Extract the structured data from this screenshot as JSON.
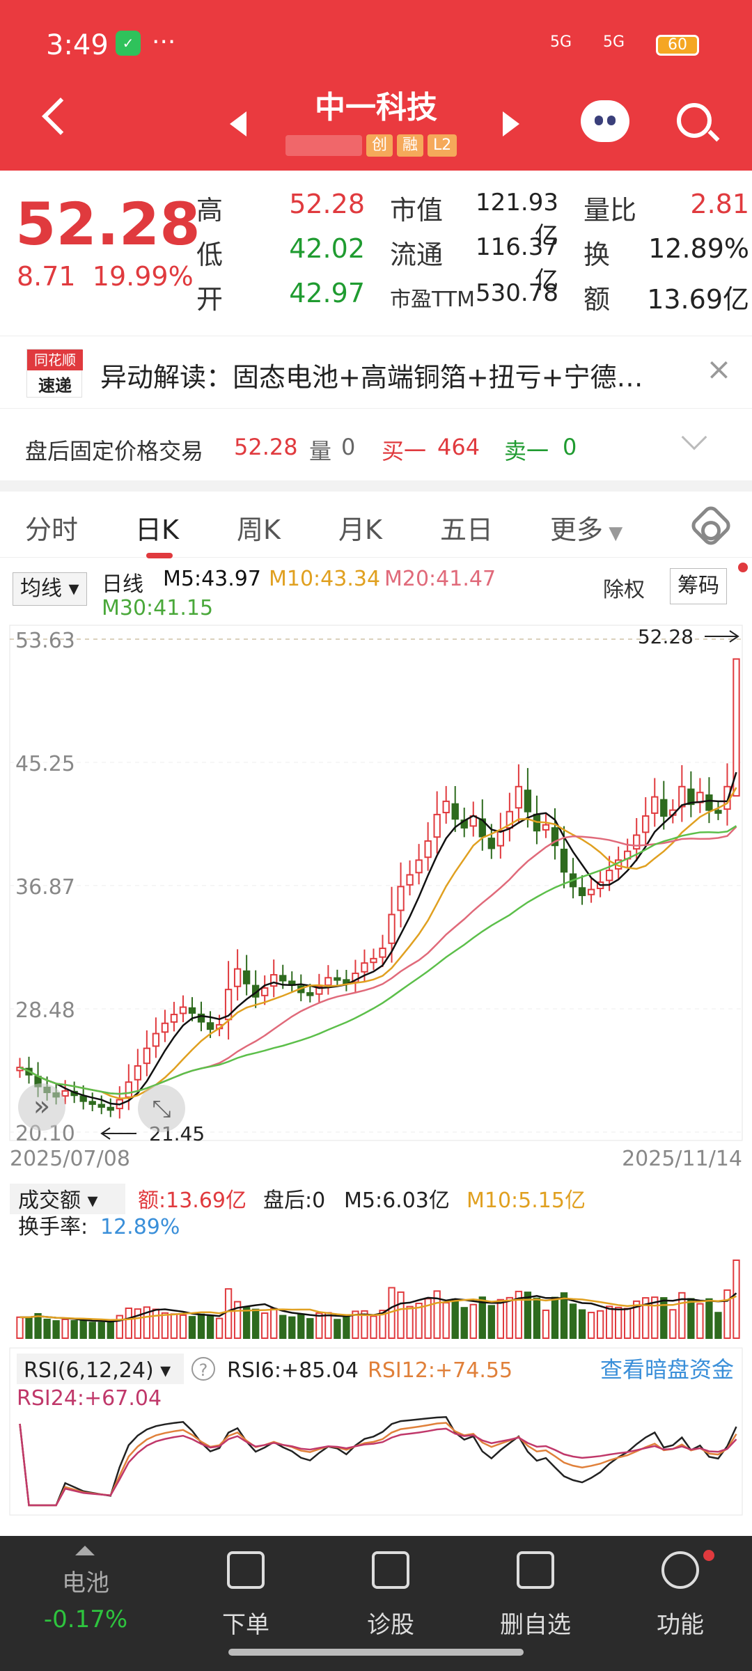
{
  "status_bar": {
    "time": "3:49",
    "dots": "···",
    "sig1": "5G",
    "sig2": "5G",
    "battery": "60"
  },
  "header": {
    "title": "中一科技",
    "tags": [
      "创",
      "融",
      "L2"
    ]
  },
  "quote": {
    "price": "52.28",
    "change": "8.71",
    "pct": "19.99%",
    "high_l": "高",
    "high": "52.28",
    "low_l": "低",
    "low": "42.02",
    "open_l": "开",
    "open": "42.97",
    "mv_l": "市值",
    "mv": "121.93亿",
    "float_l": "流通",
    "float": "116.37亿",
    "pe_l": "市盈TTM",
    "pe": "530.78",
    "vr_l": "量比",
    "vr": "2.81",
    "tr_l": "换",
    "tr": "12.89%",
    "amt_l": "额",
    "amt": "13.69亿"
  },
  "news": {
    "logo_top": "同花顺",
    "logo_bottom": "速递",
    "text": "异动解读：固态电池+高端铜箔+扭亏+宁德…"
  },
  "after_hours": {
    "label": "盘后固定价格交易",
    "price": "52.28",
    "vol_l": "量",
    "vol": "0",
    "buy_l": "买一",
    "buy": "464",
    "sell_l": "卖一",
    "sell": "0"
  },
  "tabs": [
    "分时",
    "日K",
    "周K",
    "月K",
    "五日",
    "更多"
  ],
  "kline": {
    "ma_btn": "均线",
    "type": "日线",
    "m5": "M5:43.97",
    "m10": "M10:43.34",
    "m20": "M20:41.47",
    "m30": "M30:41.15",
    "chuquan": "除权",
    "chouma": "筹码"
  },
  "colors": {
    "up": "#e03a3e",
    "down": "#2e6b1e",
    "m5": "#111111",
    "m10": "#e0a020",
    "m20": "#e06a7a",
    "m30": "#5cbf4a"
  },
  "chart_data": {
    "type": "candlestick",
    "ylabels": [
      "53.63",
      "45.25",
      "36.87",
      "28.48",
      "20.10"
    ],
    "ylim": [
      20.1,
      53.63
    ],
    "high_label": "52.28",
    "low_label": "21.45",
    "x_start": "2025/07/08",
    "x_end": "2025/11/14",
    "closes": [
      24.5,
      24.0,
      23.2,
      22.8,
      22.5,
      22.9,
      22.6,
      22.2,
      22.0,
      21.8,
      21.6,
      22.3,
      23.5,
      24.6,
      25.8,
      26.8,
      27.5,
      28.1,
      28.6,
      28.2,
      27.6,
      27.1,
      27.4,
      29.8,
      31.2,
      30.2,
      29.3,
      29.9,
      30.8,
      30.4,
      30.1,
      29.6,
      29.4,
      30.0,
      30.6,
      30.5,
      30.2,
      30.9,
      31.6,
      31.9,
      32.6,
      34.9,
      36.8,
      37.6,
      38.6,
      39.9,
      41.7,
      42.6,
      41.4,
      40.8,
      41.6,
      40.2,
      39.4,
      40.6,
      41.9,
      43.6,
      41.9,
      40.6,
      41.0,
      39.6,
      37.8,
      36.8,
      36.2,
      36.6,
      37.1,
      37.9,
      38.6,
      39.2,
      40.3,
      41.6,
      42.9,
      41.6,
      42.0,
      43.6,
      42.4,
      43.2,
      42.0,
      41.8,
      43.6,
      52.28
    ],
    "volume": {
      "label": "成交额",
      "amt": "额:13.69亿",
      "after": "盘后:0",
      "m5": "M5:6.03亿",
      "m10": "M10:5.15亿",
      "turnover_l": "换手率:",
      "turnover": "12.89%"
    },
    "rsi": {
      "label": "RSI(6,12,24)",
      "rsi6": "RSI6:+85.04",
      "rsi12": "RSI12:+74.55",
      "rsi24": "RSI24:+67.04",
      "link": "查看暗盘资金"
    }
  },
  "nav": {
    "sector": "电池",
    "sector_pct": "-0.17%",
    "items": [
      "下单",
      "诊股",
      "删自选",
      "功能"
    ]
  }
}
